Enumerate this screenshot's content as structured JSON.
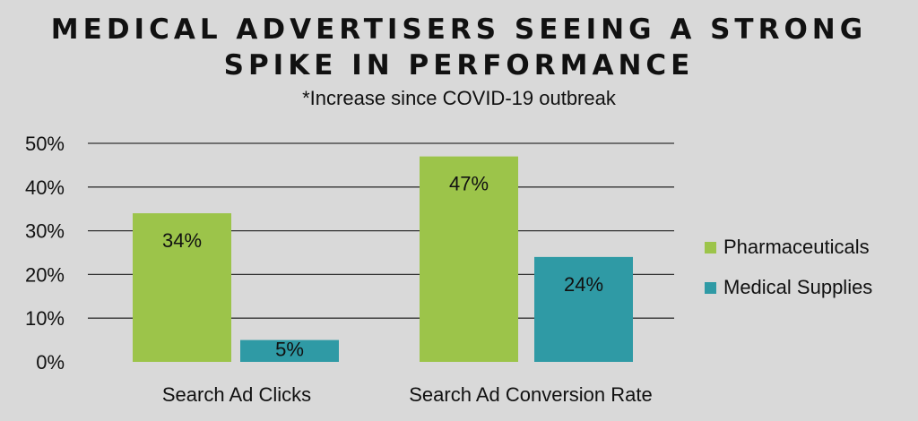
{
  "chart_data": {
    "type": "bar",
    "title_line_1": "MEDICAL ADVERTISERS SEEING A STRONG",
    "title_line_2": "SPIKE IN PERFORMANCE",
    "subtitle": "*Increase since COVID-19 outbreak",
    "categories": [
      "Search Ad Clicks",
      "Search Ad Conversion Rate"
    ],
    "series": [
      {
        "name": "Pharmaceuticals",
        "values": [
          34,
          47
        ],
        "labels": [
          "34%",
          "47%"
        ],
        "color": "#9cc44a"
      },
      {
        "name": "Medical Supplies",
        "values": [
          5,
          24
        ],
        "labels": [
          "5%",
          "24%"
        ],
        "color": "#2f9aa5"
      }
    ],
    "y_ticks": [
      0,
      10,
      20,
      30,
      40,
      50
    ],
    "y_tick_labels": [
      "0%",
      "10%",
      "20%",
      "30%",
      "40%",
      "50%"
    ],
    "ylim": [
      0,
      50
    ],
    "grid": true,
    "legend_position": "right"
  }
}
